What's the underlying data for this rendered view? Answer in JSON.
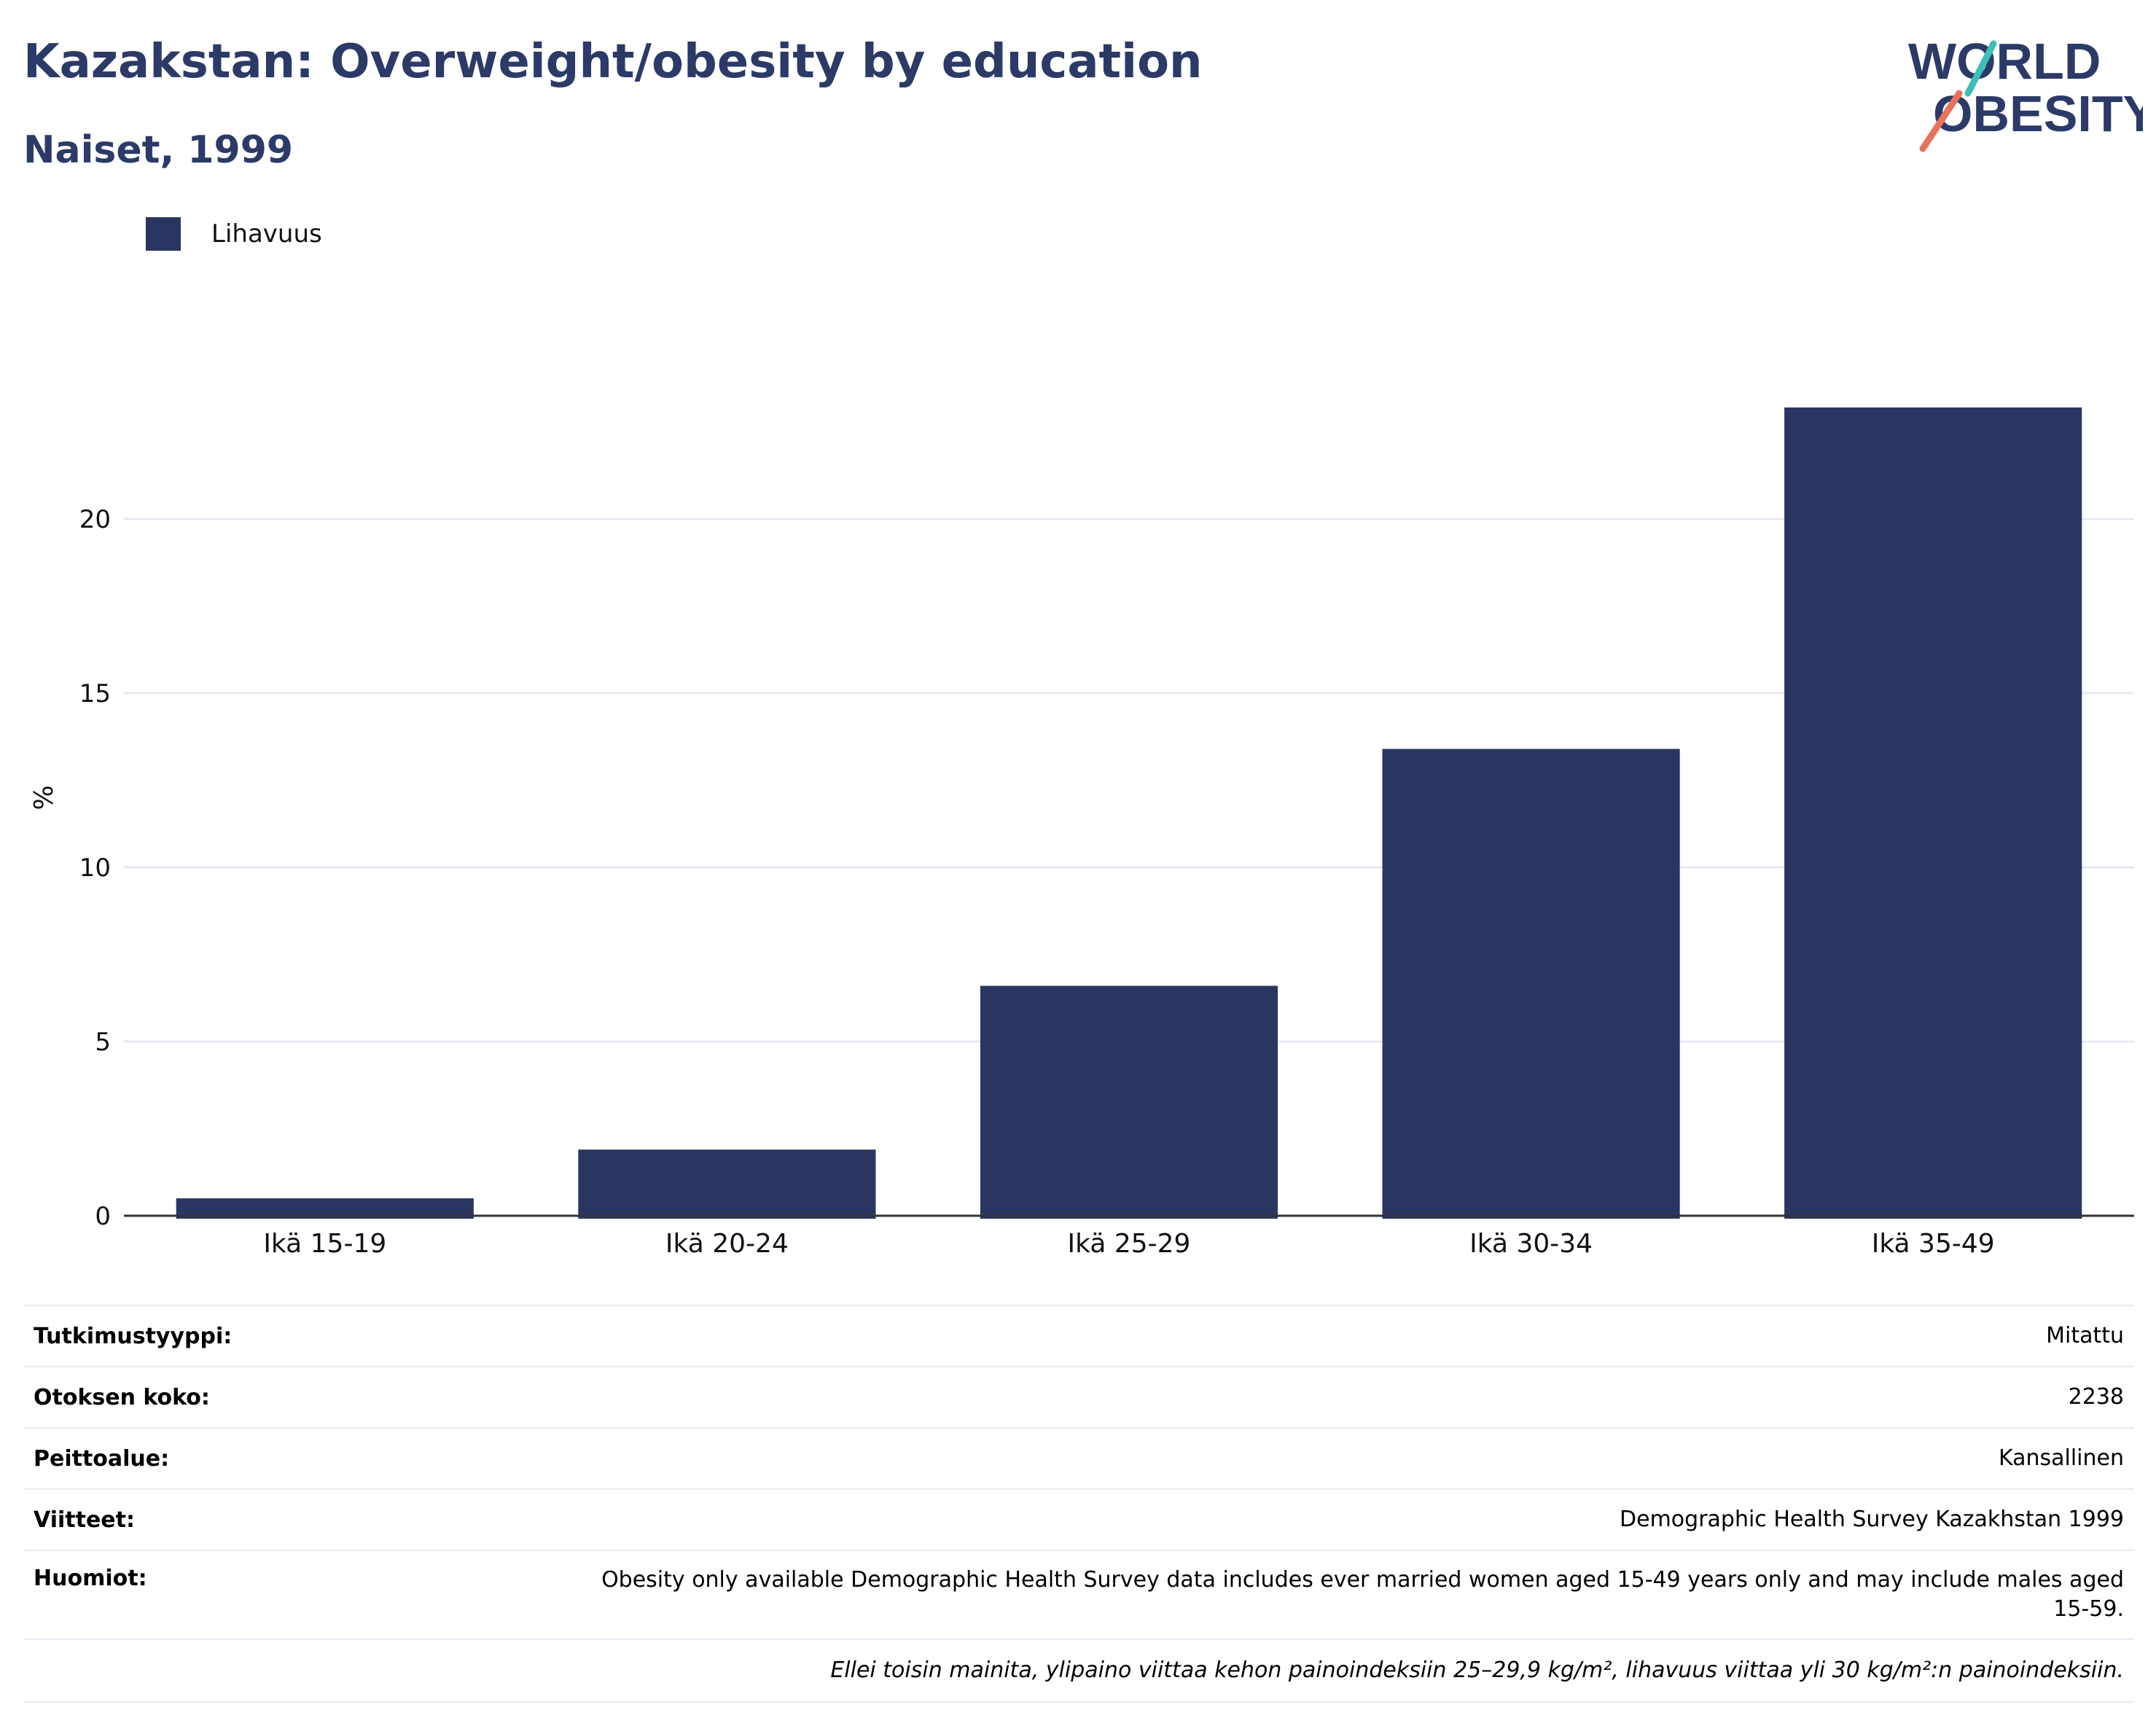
{
  "header": {
    "title": "Kazakstan: Overweight/obesity by education",
    "subtitle": "Naiset, 1999"
  },
  "logo": {
    "line1": "WORLD",
    "line2": "OBESITY",
    "colors": {
      "text": "#2b3a67",
      "teal": "#3bbfb6",
      "coral": "#e8735d"
    }
  },
  "chart_data": {
    "type": "bar",
    "categories": [
      "Ikä 15-19",
      "Ikä 20-24",
      "Ikä 25-29",
      "Ikä 30-34",
      "Ikä 35-49"
    ],
    "series": [
      {
        "name": "Lihavuus",
        "values": [
          0.5,
          1.9,
          6.6,
          13.4,
          23.2
        ],
        "color": "#2a3662"
      }
    ],
    "ylabel": "%",
    "yticks": [
      0,
      5,
      10,
      15,
      20
    ],
    "ylim": [
      0,
      25
    ],
    "grid": true,
    "legend_position": "top-left"
  },
  "info": {
    "rows": [
      {
        "key": "Tutkimustyyppi:",
        "value": "Mitattu"
      },
      {
        "key": "Otoksen koko:",
        "value": "2238"
      },
      {
        "key": "Peittoalue:",
        "value": "Kansallinen"
      },
      {
        "key": "Viitteet:",
        "value": "Demographic Health Survey Kazakhstan 1999"
      },
      {
        "key": "Huomiot:",
        "value": "Obesity only available Demographic Health Survey data includes ever married women aged 15-49 years only and may include males aged 15-59."
      }
    ],
    "note": "Ellei toisin mainita, ylipaino viittaa kehon painoindeksiin 25–29,9 kg/m², lihavuus viittaa yli 30 kg/m²:n painoindeksiin."
  }
}
